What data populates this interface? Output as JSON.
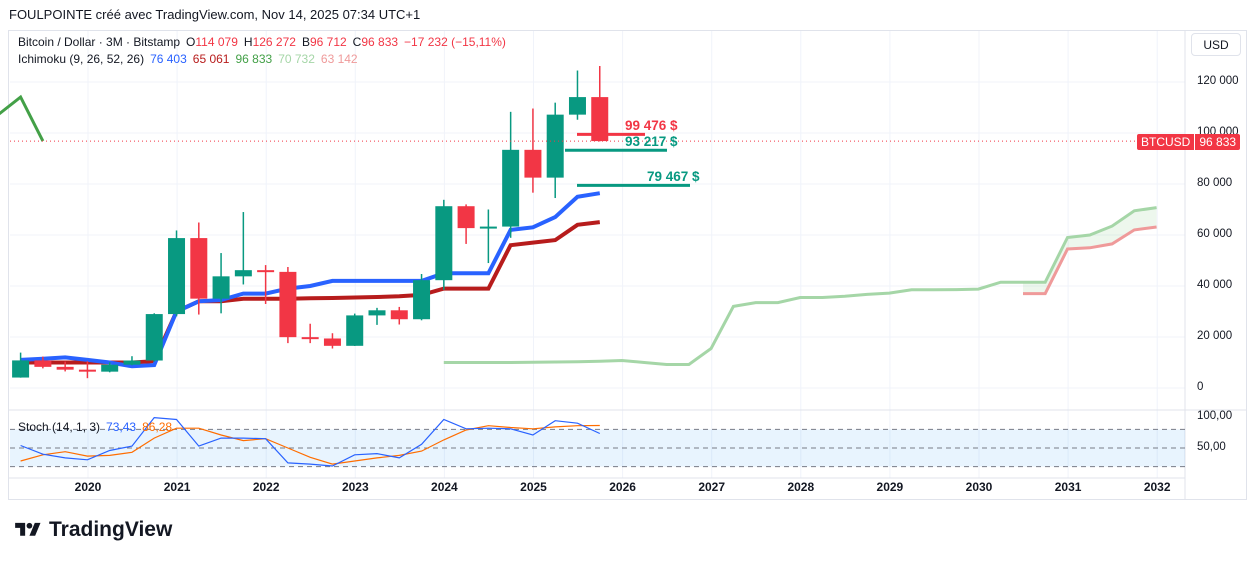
{
  "header": "FOULPOINTE créé avec TradingView.com, Nov 14, 2025 07:34 UTC+1",
  "symbol": {
    "name": "Bitcoin / Dollar · 3M · Bitstamp",
    "o_label": "O",
    "o": "114 079",
    "h_label": "H",
    "h": "126 272",
    "b_label": "B",
    "b": "96 712",
    "c_label": "C",
    "c": "96 833",
    "change": "−17 232 (−15,11%)"
  },
  "ichimoku": {
    "name": "Ichimoku (9, 26, 52, 26)",
    "v1": "76 403",
    "v2": "65 061",
    "v3": "96 833",
    "v4": "70 732",
    "v5": "63 142"
  },
  "stoch": {
    "name": "Stoch (14, 1, 3)",
    "k": "73,43",
    "d": "86,28",
    "ticks": [
      "100,00",
      "50,00"
    ]
  },
  "currency": "USD",
  "price_tag": {
    "symbol": "BTCUSD",
    "price": "96 833"
  },
  "price_ticks": [
    "120 000",
    "100 000",
    "80 000",
    "60 000",
    "40 000",
    "20 000",
    "0"
  ],
  "years": [
    "2020",
    "2021",
    "2022",
    "2023",
    "2024",
    "2025",
    "2026",
    "2027",
    "2028",
    "2029",
    "2030",
    "2031",
    "2032"
  ],
  "levels": [
    {
      "label": "99 476 $",
      "value": 99476,
      "color": "#f23645"
    },
    {
      "label": "93 217 $",
      "value": 93217,
      "color": "#089981"
    },
    {
      "label": "79 467 $",
      "value": 79467,
      "color": "#089981"
    }
  ],
  "logo": "TradingView",
  "colors": {
    "up": "#089981",
    "down": "#f23645",
    "tenkan": "#2962ff",
    "kijun": "#b71c1c",
    "spanA": "#a5d6a7",
    "spanB": "#ef9a9a",
    "chikou": "#43a047",
    "k": "#2962ff",
    "d": "#ff6d00"
  },
  "chart_data": {
    "type": "candlestick",
    "start": "2019Q2",
    "interval": "3M",
    "ohlc": [
      [
        4100,
        13880,
        4050,
        10820
      ],
      [
        10820,
        12325,
        7700,
        8290
      ],
      [
        8290,
        10350,
        6500,
        7190
      ],
      [
        7190,
        10500,
        3850,
        6410
      ],
      [
        6410,
        10080,
        6150,
        9140
      ],
      [
        9140,
        12470,
        8900,
        10780
      ],
      [
        10780,
        29300,
        10370,
        28990
      ],
      [
        28990,
        61780,
        28130,
        58790
      ],
      [
        58790,
        64900,
        28800,
        35040
      ],
      [
        35040,
        52920,
        29280,
        43790
      ],
      [
        43790,
        69000,
        40600,
        46210
      ],
      [
        46210,
        48200,
        32950,
        45540
      ],
      [
        45540,
        47450,
        17600,
        19940
      ],
      [
        19940,
        25200,
        17600,
        19420
      ],
      [
        19420,
        21480,
        15480,
        16540
      ],
      [
        16540,
        29180,
        16490,
        28470
      ],
      [
        28470,
        31430,
        24750,
        30470
      ],
      [
        30470,
        31800,
        24900,
        26970
      ],
      [
        26970,
        44700,
        26550,
        42280
      ],
      [
        42280,
        73800,
        38500,
        71290
      ],
      [
        71290,
        72000,
        56500,
        62700
      ],
      [
        62700,
        70000,
        49000,
        63300
      ],
      [
        63300,
        108300,
        58900,
        93400
      ],
      [
        93400,
        109600,
        76600,
        82500
      ],
      [
        82500,
        111900,
        74500,
        107200
      ],
      [
        107200,
        124500,
        105200,
        114080
      ],
      [
        114079,
        126272,
        96712,
        96833
      ]
    ],
    "tenkan": [
      11000,
      11500,
      12000,
      11000,
      10000,
      8500,
      9000,
      30000,
      34000,
      34500,
      37000,
      37000,
      39000,
      40000,
      42000,
      42000,
      42000,
      42000,
      42000,
      45000,
      45000,
      45000,
      62000,
      63000,
      67000,
      75000,
      76403
    ],
    "kijun": [
      10000,
      10000,
      10000,
      10000,
      10000,
      10000,
      10500,
      30000,
      34000,
      34000,
      35000,
      35000,
      35000,
      35200,
      35300,
      35500,
      35700,
      36000,
      36500,
      39000,
      39000,
      39000,
      56000,
      57000,
      58000,
      64000,
      65061
    ],
    "span_a_from": 19,
    "span_a": [
      10000,
      10000,
      10000,
      10000,
      10100,
      10200,
      10300,
      10500,
      10800,
      10000,
      9200,
      9200,
      15500,
      32000,
      33500,
      33500,
      35500,
      35500,
      36000,
      36700,
      37200,
      38500,
      38500,
      38600,
      38800,
      41500,
      41500,
      41500,
      59000,
      60000,
      63500,
      69500,
      70732
    ],
    "span_b_from": 45,
    "span_b": [
      37000,
      37000,
      54500,
      55000,
      56500,
      62000,
      63142
    ],
    "chikou_from": -1,
    "chikou": [
      107200,
      114080,
      96833
    ],
    "stoch_k": [
      54,
      40,
      34,
      31,
      46,
      53,
      99,
      96,
      53,
      66,
      66,
      65,
      26,
      24,
      21,
      39,
      41,
      34,
      56,
      96,
      81,
      82,
      81,
      71,
      94,
      90,
      73.43
    ],
    "stoch_d": [
      29,
      39,
      44,
      37,
      38,
      43,
      66,
      82,
      82,
      71,
      62,
      65,
      50,
      35,
      24,
      29,
      34,
      38,
      45,
      63,
      79,
      86,
      83,
      81,
      84,
      86,
      86.28
    ],
    "ylim": [
      -10000,
      130000
    ],
    "stoch_bands": [
      20,
      50,
      80
    ]
  }
}
